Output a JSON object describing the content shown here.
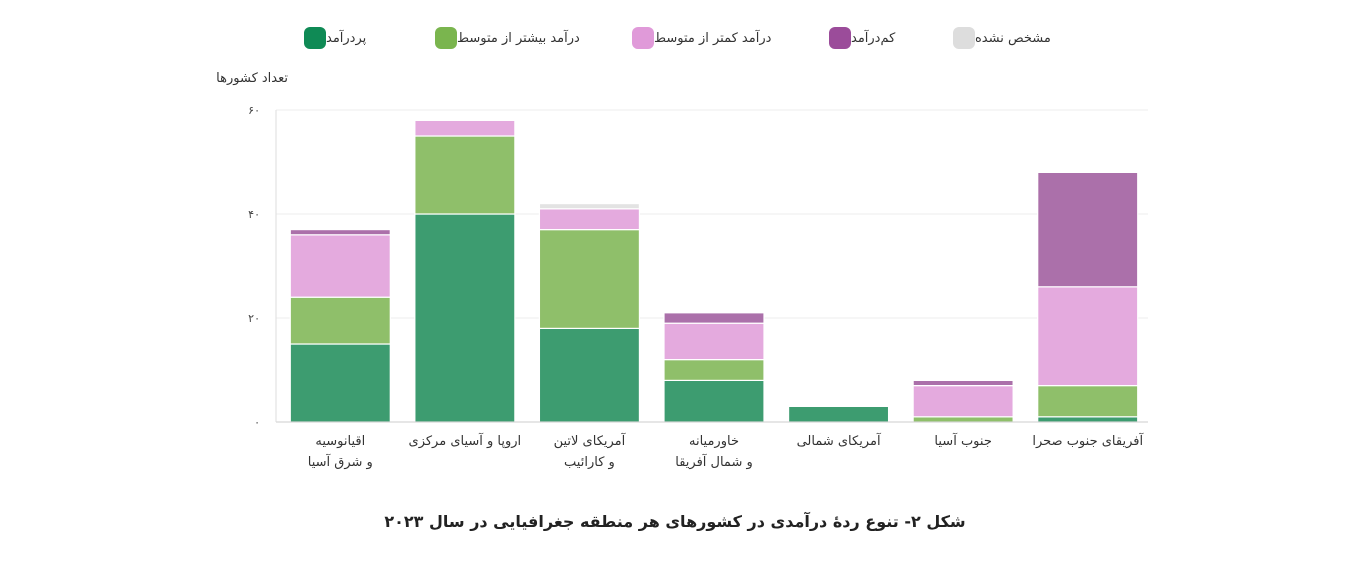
{
  "legend": [
    {
      "label": "پردرآمد",
      "color": "#0f8a55"
    },
    {
      "label": "درآمد بیشتر از متوسط",
      "color": "#7ab54e"
    },
    {
      "label": "درآمد کمتر از متوسط",
      "color": "#e09ad9"
    },
    {
      "label": "کم‌درآمد",
      "color": "#9b4c9a"
    },
    {
      "label": "مشخص نشده",
      "color": "#dddddd"
    }
  ],
  "caption": "شکل ۲- تنوع ردهٔ درآمدی در کشورهای هر منطقه جغرافیایی در سال ۲۰۲۳",
  "chart_data": {
    "type": "bar",
    "stacked": true,
    "ylabel": "تعداد کشورها",
    "ylim": [
      0,
      60
    ],
    "yticks": [
      {
        "value": 0,
        "label": "۰"
      },
      {
        "value": 20,
        "label": "۲۰"
      },
      {
        "value": 40,
        "label": "۴۰"
      },
      {
        "value": 60,
        "label": "۶۰"
      }
    ],
    "grid": true,
    "legend_position": "top",
    "categories": [
      [
        "اقیانوسیه",
        "و شرق آسیا"
      ],
      [
        "اروپا و آسیای مرکزی"
      ],
      [
        "آمریکای لاتین",
        "و کارائیب"
      ],
      [
        "خاورمیانه",
        "و شمال آفریقا"
      ],
      [
        "آمریکای شمالی"
      ],
      [
        "جنوب آسیا"
      ],
      [
        "آفریقای جنوب صحرا"
      ]
    ],
    "series": [
      {
        "name": "پردرآمد",
        "color": "#3d9c70",
        "values": [
          15,
          40,
          18,
          8,
          3,
          0,
          1
        ]
      },
      {
        "name": "درآمد بیشتر از متوسط",
        "color": "#8fbf6a",
        "values": [
          9,
          15,
          19,
          4,
          0,
          1,
          6
        ]
      },
      {
        "name": "درآمد کمتر از متوسط",
        "color": "#e4aade",
        "values": [
          12,
          3,
          4,
          7,
          0,
          6,
          19
        ]
      },
      {
        "name": "کم‌درآمد",
        "color": "#ab70aa",
        "values": [
          1,
          0,
          0,
          2,
          0,
          1,
          22
        ]
      },
      {
        "name": "مشخص نشده",
        "color": "#e3e3e3",
        "values": [
          0,
          0,
          1,
          0,
          0,
          0,
          0
        ]
      }
    ]
  }
}
